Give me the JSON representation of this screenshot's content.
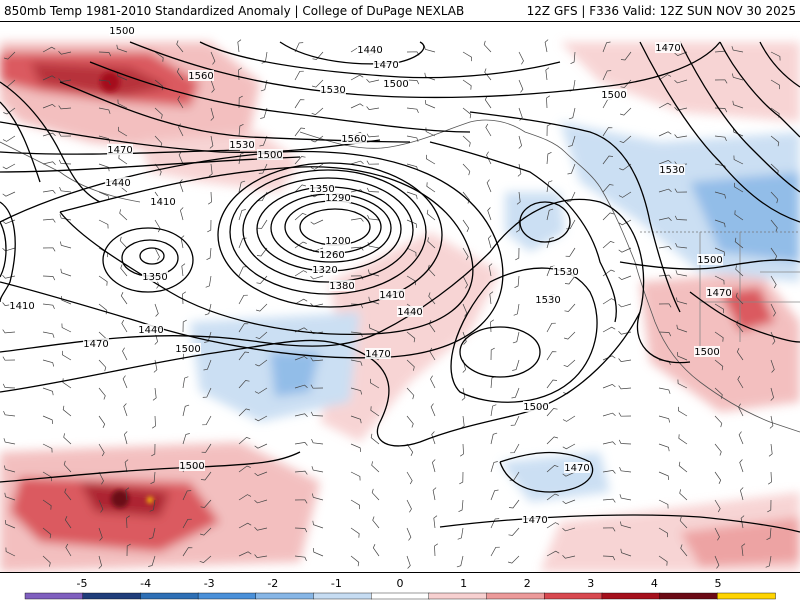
{
  "header": {
    "left_title": "850mb Temp 1981-2010 Standardized Anomaly | College of DuPage NEXLAB",
    "right_title": "12Z GFS | F336 Valid: 12Z SUN NOV 30 2025"
  },
  "colorbar": {
    "ticks": [
      "-5",
      "-4",
      "-3",
      "-2",
      "-1",
      "0",
      "1",
      "2",
      "3",
      "4",
      "5"
    ],
    "colors": [
      "#7f5fbf",
      "#1f3d7a",
      "#2e6fb5",
      "#4a90d9",
      "#87b6e6",
      "#c6dcf2",
      "#ffffff",
      "#f7d0d0",
      "#ec9a9a",
      "#d8484f",
      "#a5101c",
      "#6b0a15",
      "#ffd400"
    ]
  },
  "contour_labels": [
    {
      "id": "c1500a",
      "text": "1500"
    },
    {
      "id": "c1440a",
      "text": "1440"
    },
    {
      "id": "c1470a",
      "text": "1470"
    },
    {
      "id": "c1500b",
      "text": "1500"
    },
    {
      "id": "c1530a",
      "text": "1530"
    },
    {
      "id": "c1560a",
      "text": "1560"
    },
    {
      "id": "c1530b",
      "text": "1530"
    },
    {
      "id": "c1500c",
      "text": "1500"
    },
    {
      "id": "c1560b",
      "text": "1560"
    },
    {
      "id": "c1470b",
      "text": "1470"
    },
    {
      "id": "c1440b",
      "text": "1440"
    },
    {
      "id": "c1410a",
      "text": "1410"
    },
    {
      "id": "c1350a",
      "text": "1350"
    },
    {
      "id": "c1290",
      "text": "1290"
    },
    {
      "id": "c1200",
      "text": "1200"
    },
    {
      "id": "c1260",
      "text": "1260"
    },
    {
      "id": "c1320",
      "text": "1320"
    },
    {
      "id": "c1380",
      "text": "1380"
    },
    {
      "id": "c1410b",
      "text": "1410"
    },
    {
      "id": "c1440c",
      "text": "1440"
    },
    {
      "id": "c1350b",
      "text": "1350"
    },
    {
      "id": "c1440d",
      "text": "1440"
    },
    {
      "id": "c1410c",
      "text": "1410"
    },
    {
      "id": "c1470c",
      "text": "1470"
    },
    {
      "id": "c1500d",
      "text": "1500"
    },
    {
      "id": "c1470d",
      "text": "1470"
    },
    {
      "id": "c1530c",
      "text": "1530"
    },
    {
      "id": "c1530d",
      "text": "1530"
    },
    {
      "id": "c1500e",
      "text": "1500"
    },
    {
      "id": "c1500f",
      "text": "1500"
    },
    {
      "id": "c1470e",
      "text": "1470"
    },
    {
      "id": "c1470f",
      "text": "1470"
    },
    {
      "id": "c1500g",
      "text": "1500"
    },
    {
      "id": "c1470g",
      "text": "1470"
    },
    {
      "id": "c1500h",
      "text": "1500"
    },
    {
      "id": "c1470h",
      "text": "1470"
    },
    {
      "id": "c1530e",
      "text": "1530"
    },
    {
      "id": "c1500i",
      "text": "1500"
    }
  ]
}
